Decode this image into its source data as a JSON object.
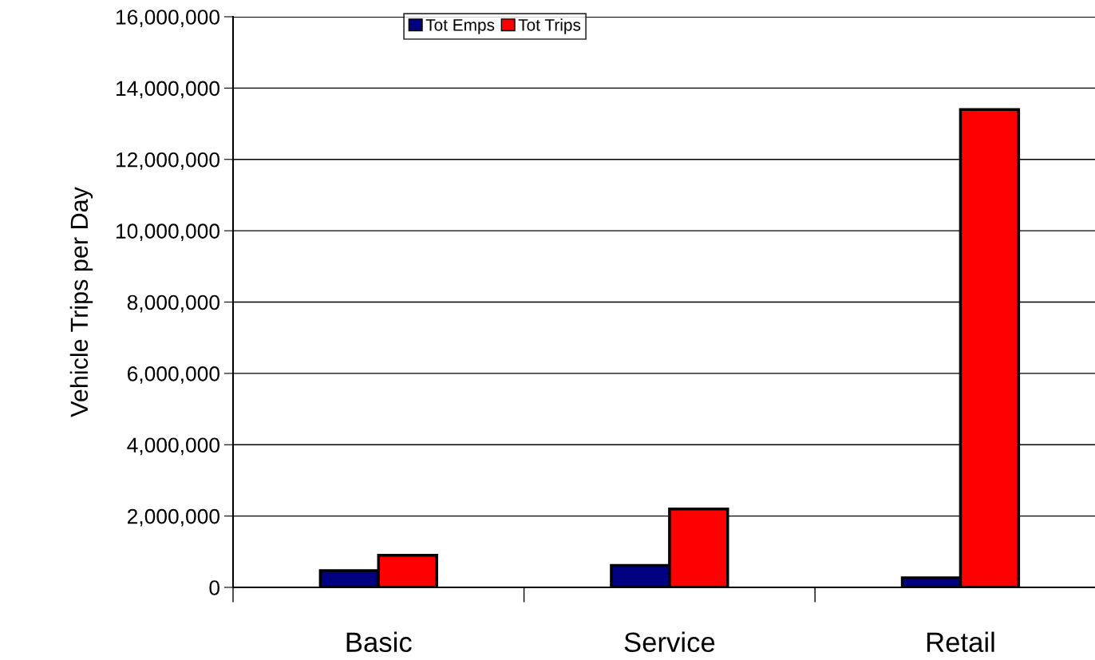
{
  "chart_data": {
    "type": "bar",
    "ylabel": "Vehicle Trips per Day",
    "categories": [
      "Basic",
      "Service",
      "Retail"
    ],
    "series": [
      {
        "name": "Tot Emps",
        "color": "#000080",
        "values": [
          470000,
          615000,
          270000
        ]
      },
      {
        "name": "Tot Trips",
        "color": "#ff0000",
        "values": [
          900000,
          2200000,
          13400000
        ]
      }
    ],
    "ylim": [
      0,
      16000000
    ],
    "yticks": [
      {
        "value": 0,
        "label": "0"
      },
      {
        "value": 2000000,
        "label": "2,000,000"
      },
      {
        "value": 4000000,
        "label": "4,000,000"
      },
      {
        "value": 6000000,
        "label": "6,000,000"
      },
      {
        "value": 8000000,
        "label": "8,000,000"
      },
      {
        "value": 10000000,
        "label": "10,000,000"
      },
      {
        "value": 12000000,
        "label": "12,000,000"
      },
      {
        "value": 14000000,
        "label": "14,000,000"
      },
      {
        "value": 16000000,
        "label": "16,000,000"
      }
    ],
    "grid": "y",
    "legend": "top"
  }
}
